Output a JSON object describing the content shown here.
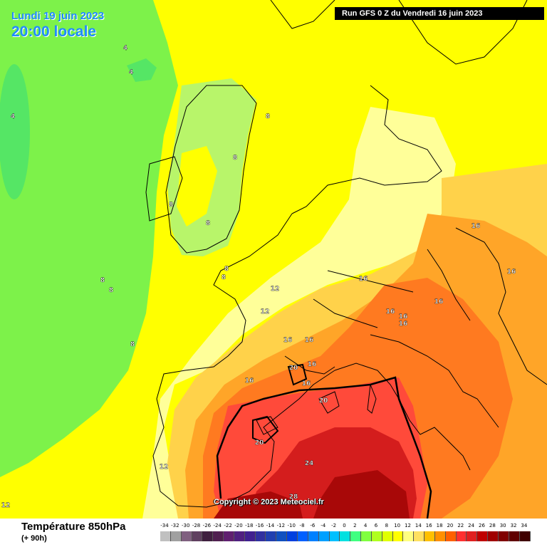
{
  "header": {
    "date": "Lundi 19 juin 2023",
    "time": "20:00 locale",
    "run": "Run GFS 0 Z du Vendredi 16 juin 2023"
  },
  "copyright": "Copyright © 2023 Meteociel.fr",
  "footer": {
    "variable": "Température 850hPa",
    "lead": "(+ 90h)"
  },
  "scale": {
    "labels": [
      "-34",
      "-32",
      "-30",
      "-28",
      "-26",
      "-24",
      "-22",
      "-20",
      "-18",
      "-16",
      "-14",
      "-12",
      "-10",
      "-8",
      "-6",
      "-4",
      "-2",
      "0",
      "2",
      "4",
      "6",
      "8",
      "10",
      "12",
      "14",
      "16",
      "18",
      "20",
      "22",
      "24",
      "26",
      "28",
      "30",
      "32",
      "34"
    ],
    "colors": [
      "#c0c0c0",
      "#a0a0a0",
      "#806080",
      "#604060",
      "#402040",
      "#502050",
      "#602070",
      "#502080",
      "#402090",
      "#3030a0",
      "#2040b0",
      "#1050c0",
      "#0040e0",
      "#0060ff",
      "#0080ff",
      "#00a0ff",
      "#00c0ff",
      "#00e0e0",
      "#40ff80",
      "#80ff40",
      "#b0ff20",
      "#e0ff00",
      "#ffff00",
      "#ffff80",
      "#ffe060",
      "#ffc000",
      "#ff9000",
      "#ff6000",
      "#ff3030",
      "#e02020",
      "#c00000",
      "#a00000",
      "#800000",
      "#600000",
      "#400000"
    ]
  },
  "map_labels": [
    {
      "text": "4"
    },
    {
      "text": "4"
    },
    {
      "text": "4"
    },
    {
      "text": "8"
    },
    {
      "text": "8"
    },
    {
      "text": "8"
    },
    {
      "text": "8"
    },
    {
      "text": "8"
    },
    {
      "text": "8"
    },
    {
      "text": "8"
    },
    {
      "text": "8"
    },
    {
      "text": "8"
    },
    {
      "text": "12"
    },
    {
      "text": "12"
    },
    {
      "text": "12"
    },
    {
      "text": "12"
    },
    {
      "text": "16"
    },
    {
      "text": "16"
    },
    {
      "text": "16"
    },
    {
      "text": "16"
    },
    {
      "text": "16"
    },
    {
      "text": "16"
    },
    {
      "text": "16"
    },
    {
      "text": "16"
    },
    {
      "text": "16"
    },
    {
      "text": "16"
    },
    {
      "text": "16"
    },
    {
      "text": "16"
    },
    {
      "text": "20"
    },
    {
      "text": "20"
    },
    {
      "text": "20"
    },
    {
      "text": "24"
    },
    {
      "text": "28"
    }
  ]
}
